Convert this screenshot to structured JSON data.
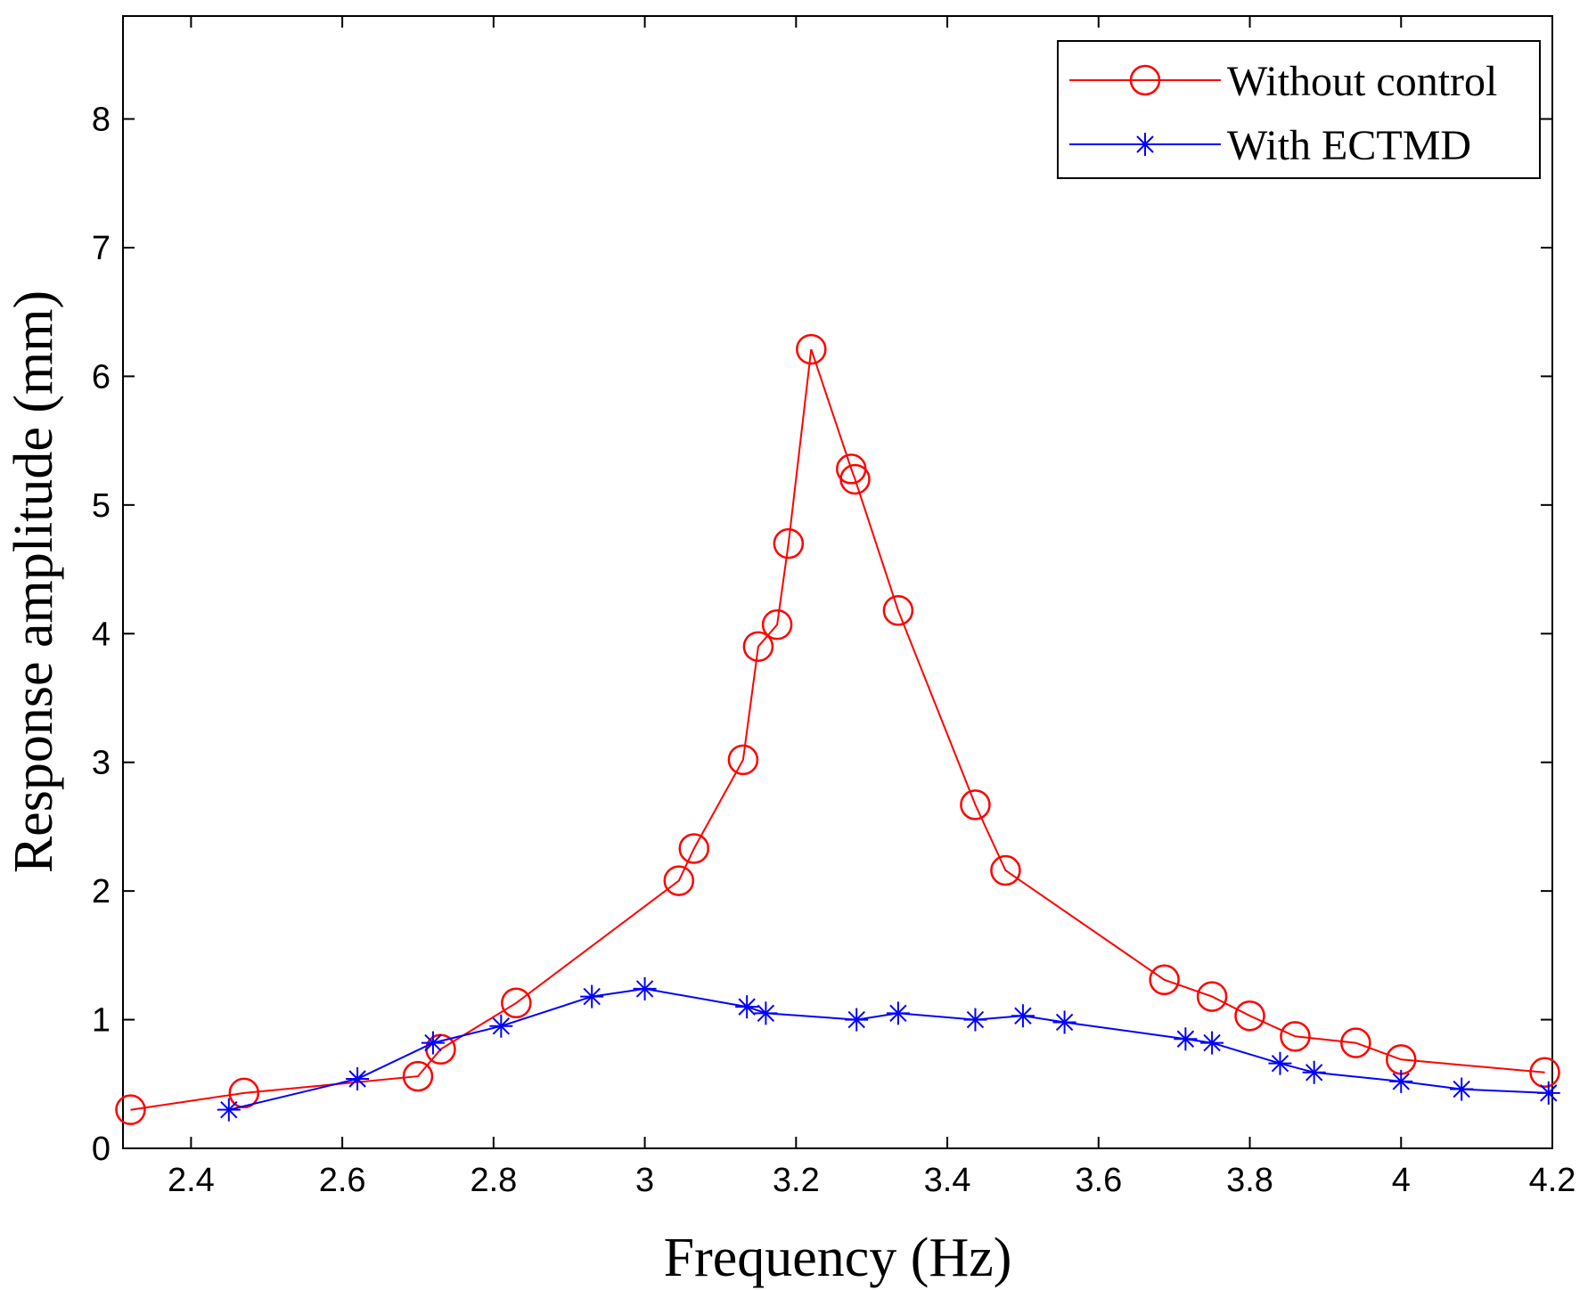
{
  "chart_data": {
    "type": "line",
    "title": "",
    "xlabel": "Frequency (Hz)",
    "ylabel": "Response amplitude (mm)",
    "xlim": [
      2.31,
      4.2
    ],
    "ylim": [
      0,
      8.8
    ],
    "xticks": [
      2.4,
      2.6,
      2.8,
      3,
      3.2,
      3.4,
      3.6,
      3.8,
      4,
      4.2
    ],
    "xtick_labels": [
      "2.4",
      "2.6",
      "2.8",
      "3",
      "3.2",
      "3.4",
      "3.6",
      "3.8",
      "4",
      "4.2"
    ],
    "yticks": [
      0,
      1,
      2,
      3,
      4,
      5,
      6,
      7,
      8
    ],
    "ytick_labels": [
      "0",
      "1",
      "2",
      "3",
      "4",
      "5",
      "6",
      "7",
      "8"
    ],
    "grid": false,
    "legend_position": "top-right",
    "series": [
      {
        "name": "Without control",
        "color": "#ff0000",
        "marker": "circle",
        "x": [
          2.32,
          2.47,
          2.7,
          2.73,
          2.83,
          3.045,
          3.065,
          3.13,
          3.15,
          3.175,
          3.19,
          3.22,
          3.273,
          3.278,
          3.335,
          3.437,
          3.477,
          3.687,
          3.75,
          3.8,
          3.86,
          3.94,
          4.0,
          4.19
        ],
        "y": [
          0.3,
          0.43,
          0.56,
          0.77,
          1.13,
          2.08,
          2.33,
          3.02,
          3.9,
          4.07,
          4.7,
          6.21,
          5.28,
          5.2,
          4.18,
          2.67,
          2.16,
          1.31,
          1.18,
          1.03,
          0.87,
          0.82,
          0.69,
          0.59
        ]
      },
      {
        "name": "With ECTMD",
        "color": "#0000ff",
        "marker": "star",
        "x": [
          2.45,
          2.62,
          2.72,
          2.81,
          2.93,
          3.0,
          3.135,
          3.16,
          3.28,
          3.335,
          3.437,
          3.5,
          3.555,
          3.715,
          3.75,
          3.84,
          3.885,
          4.0,
          4.08,
          4.195
        ],
        "y": [
          0.3,
          0.54,
          0.82,
          0.95,
          1.18,
          1.24,
          1.1,
          1.05,
          1.0,
          1.05,
          1.0,
          1.03,
          0.98,
          0.85,
          0.82,
          0.66,
          0.59,
          0.52,
          0.46,
          0.43
        ]
      }
    ]
  }
}
